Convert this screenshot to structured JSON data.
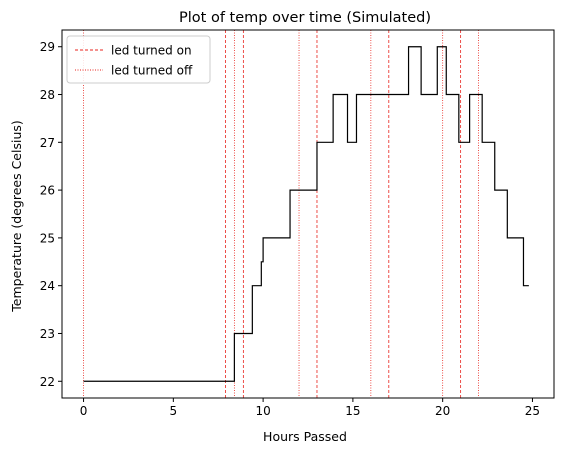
{
  "chart_data": {
    "type": "line",
    "title": "Plot of temp over time (Simulated)",
    "xlabel": "Hours Passed",
    "ylabel": "Temperature (degrees Celsius)",
    "xlim": [
      -1.2,
      26.2
    ],
    "ylim": [
      21.65,
      29.35
    ],
    "xticks": [
      0,
      5,
      10,
      15,
      20,
      25
    ],
    "yticks": [
      22,
      23,
      24,
      25,
      26,
      27,
      28,
      29
    ],
    "grid": false,
    "legend_position": "top-left",
    "series": [
      {
        "name": "temp",
        "color": "#000000",
        "step": "post",
        "x": [
          0,
          8.4,
          9.4,
          9.9,
          10.0,
          11.5,
          13.0,
          13.9,
          14.1,
          14.7,
          15.2,
          15.5,
          18.0,
          18.1,
          18.3,
          18.8,
          19.7,
          20.2,
          20.9,
          21.5,
          22.2,
          22.9,
          23.6,
          24.5,
          24.8
        ],
        "y": [
          22,
          23,
          24,
          24.5,
          25,
          26,
          27,
          28,
          28,
          27,
          28,
          28,
          28,
          29,
          29,
          28,
          29,
          28,
          27,
          28,
          27,
          26,
          25,
          24,
          24
        ]
      }
    ],
    "vlines": [
      {
        "name": "led turned on",
        "color": "#e8231c",
        "style": "dashed",
        "x": [
          7.9,
          8.9,
          13.0,
          17.0,
          21.0
        ]
      },
      {
        "name": "led turned off",
        "color": "#e8231c",
        "style": "dotted",
        "x": [
          0,
          8.4,
          12.0,
          16.0,
          20.0,
          22.0
        ]
      }
    ]
  }
}
